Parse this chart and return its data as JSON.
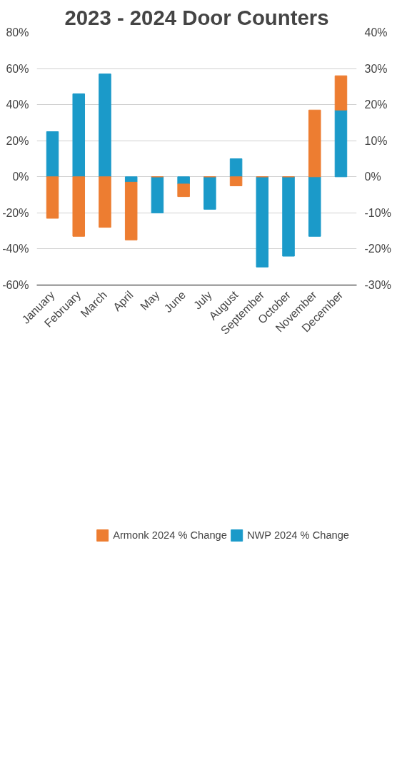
{
  "chart_data": {
    "type": "bar",
    "title": "2023 - 2024 Door Counters",
    "stacked": true,
    "categories": [
      "January",
      "February",
      "March",
      "April",
      "May",
      "June",
      "July",
      "August",
      "September",
      "October",
      "November",
      "December"
    ],
    "series": [
      {
        "name": "NWP 2024 % Change",
        "color": "#1b9ac9",
        "values": [
          25,
          46,
          57,
          -3,
          -20,
          -4,
          -18,
          10,
          -50,
          -44,
          -33,
          37
        ]
      },
      {
        "name": "Armonk 2024 % Change",
        "color": "#ed7d31",
        "values": [
          -23,
          -33,
          -28,
          -32,
          0,
          -7,
          0,
          -5,
          0,
          0,
          37,
          19
        ]
      }
    ],
    "ylim": [
      -60,
      80
    ],
    "yticks": [
      {
        "value": -60,
        "label": "-60%"
      },
      {
        "value": -40,
        "label": "-40%"
      },
      {
        "value": -20,
        "label": "-20%"
      },
      {
        "value": 0,
        "label": "0%"
      },
      {
        "value": 20,
        "label": "20%"
      },
      {
        "value": 40,
        "label": "40%"
      },
      {
        "value": 60,
        "label": "60%"
      },
      {
        "value": 80,
        "label": "80%"
      }
    ],
    "y2lim": [
      -30,
      40
    ],
    "y2ticks": [
      {
        "value": -30,
        "label": "-30%"
      },
      {
        "value": -20,
        "label": "-20%"
      },
      {
        "value": -10,
        "label": "-10%"
      },
      {
        "value": 0,
        "label": "0%"
      },
      {
        "value": 10,
        "label": "10%"
      },
      {
        "value": 20,
        "label": "20%"
      },
      {
        "value": 30,
        "label": "30%"
      },
      {
        "value": 40,
        "label": "40%"
      }
    ],
    "grid": "y",
    "legend": "bottom"
  }
}
